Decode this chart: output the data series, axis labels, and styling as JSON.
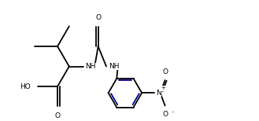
{
  "bg": "#ffffff",
  "lc": "#000000",
  "lc_blue": "#00008b",
  "lw": 1.3,
  "fs": 6.5,
  "figsize": [
    3.29,
    1.54
  ],
  "dpi": 100,
  "xlim": [
    0,
    9.8
  ],
  "ylim": [
    0.0,
    5.2
  ]
}
